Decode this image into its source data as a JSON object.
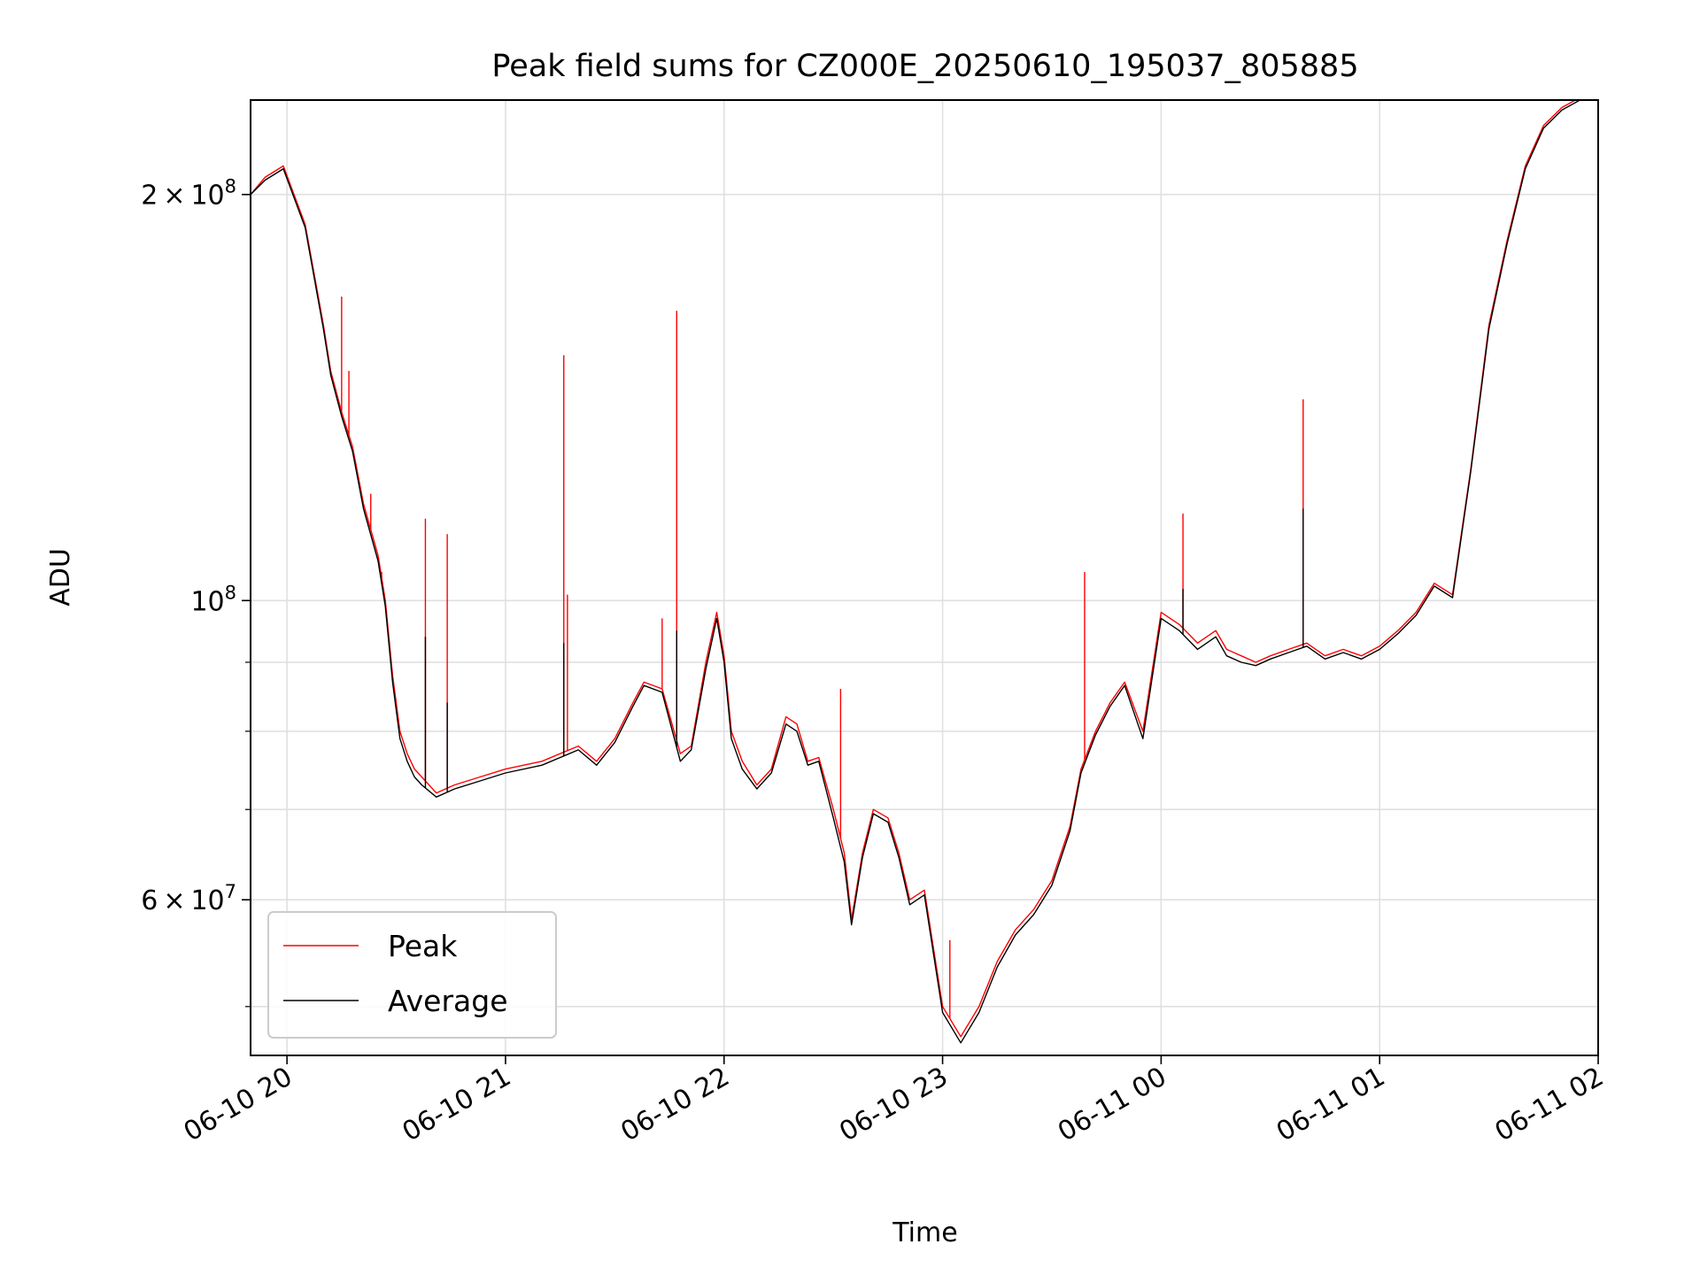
{
  "chart_data": {
    "type": "line",
    "title": "Peak field sums for CZ000E_20250610_195037_805885",
    "xlabel": "Time",
    "ylabel": "ADU",
    "yscale": "log",
    "grid": true,
    "legend_position": "lower-left",
    "x_tick_labels": [
      "06-10 20",
      "06-10 21",
      "06-10 22",
      "06-10 23",
      "06-11 00",
      "06-11 01",
      "06-11 02"
    ],
    "x_tick_times": [
      "2025-06-10 20:00",
      "2025-06-10 21:00",
      "2025-06-10 22:00",
      "2025-06-10 23:00",
      "2025-06-11 00:00",
      "2025-06-11 01:00",
      "2025-06-11 02:00"
    ],
    "xlim": [
      "2025-06-10 19:50",
      "2025-06-11 02:00"
    ],
    "ylim": [
      46000000,
      235000000
    ],
    "y_major_ticks": [
      {
        "value": 60000000,
        "mantissa": "6",
        "exponent": "7"
      },
      {
        "value": 100000000,
        "mantissa": "",
        "exponent": "8"
      },
      {
        "value": 200000000,
        "mantissa": "2",
        "exponent": "8"
      }
    ],
    "y_minor_ticks": [
      50000000,
      70000000,
      80000000,
      90000000
    ],
    "x": [
      "2025-06-10 19:50",
      "2025-06-10 19:54",
      "2025-06-10 19:59",
      "2025-06-10 20:05",
      "2025-06-10 20:10",
      "2025-06-10 20:12",
      "2025-06-10 20:15",
      "2025-06-10 20:18",
      "2025-06-10 20:21",
      "2025-06-10 20:25",
      "2025-06-10 20:27",
      "2025-06-10 20:29",
      "2025-06-10 20:31",
      "2025-06-10 20:33",
      "2025-06-10 20:35",
      "2025-06-10 20:37",
      "2025-06-10 20:41",
      "2025-06-10 20:46",
      "2025-06-10 20:53",
      "2025-06-10 21:00",
      "2025-06-10 21:10",
      "2025-06-10 21:20",
      "2025-06-10 21:25",
      "2025-06-10 21:30",
      "2025-06-10 21:35",
      "2025-06-10 21:38",
      "2025-06-10 21:43",
      "2025-06-10 21:48",
      "2025-06-10 21:51",
      "2025-06-10 21:55",
      "2025-06-10 21:58",
      "2025-06-10 22:00",
      "2025-06-10 22:02",
      "2025-06-10 22:05",
      "2025-06-10 22:09",
      "2025-06-10 22:13",
      "2025-06-10 22:17",
      "2025-06-10 22:20",
      "2025-06-10 22:23",
      "2025-06-10 22:26",
      "2025-06-10 22:30",
      "2025-06-10 22:33",
      "2025-06-10 22:35",
      "2025-06-10 22:38",
      "2025-06-10 22:41",
      "2025-06-10 22:45",
      "2025-06-10 22:48",
      "2025-06-10 22:51",
      "2025-06-10 22:55",
      "2025-06-10 23:00",
      "2025-06-10 23:05",
      "2025-06-10 23:10",
      "2025-06-10 23:15",
      "2025-06-10 23:20",
      "2025-06-10 23:25",
      "2025-06-10 23:30",
      "2025-06-10 23:35",
      "2025-06-10 23:38",
      "2025-06-10 23:42",
      "2025-06-10 23:46",
      "2025-06-10 23:50",
      "2025-06-10 23:55",
      "2025-06-11 00:00",
      "2025-06-11 00:05",
      "2025-06-11 00:10",
      "2025-06-11 00:15",
      "2025-06-11 00:18",
      "2025-06-11 00:22",
      "2025-06-11 00:26",
      "2025-06-11 00:30",
      "2025-06-11 00:35",
      "2025-06-11 00:40",
      "2025-06-11 00:45",
      "2025-06-11 00:50",
      "2025-06-11 00:55",
      "2025-06-11 01:00",
      "2025-06-11 01:05",
      "2025-06-11 01:10",
      "2025-06-11 01:15",
      "2025-06-11 01:20",
      "2025-06-11 01:25",
      "2025-06-11 01:30",
      "2025-06-11 01:35",
      "2025-06-11 01:40",
      "2025-06-11 01:45",
      "2025-06-11 01:50",
      "2025-06-11 01:55",
      "2025-06-11 02:00"
    ],
    "series": [
      {
        "name": "Peak",
        "color": "#ff0000",
        "values": [
          200000000,
          206000000,
          210000000,
          190000000,
          160000000,
          148000000,
          138000000,
          130000000,
          118000000,
          108000000,
          100000000,
          88000000,
          80000000,
          77000000,
          75000000,
          74000000,
          72000000,
          73000000,
          74000000,
          75000000,
          76000000,
          78000000,
          76000000,
          79000000,
          84000000,
          87000000,
          86000000,
          77000000,
          78000000,
          90000000,
          98000000,
          91000000,
          80000000,
          76000000,
          73000000,
          75000000,
          82000000,
          81000000,
          76000000,
          76500000,
          70000000,
          65000000,
          58000000,
          65000000,
          70000000,
          69000000,
          65000000,
          60000000,
          61000000,
          50000000,
          47500000,
          50000000,
          54000000,
          57000000,
          59000000,
          62000000,
          68000000,
          75000000,
          80000000,
          84000000,
          87000000,
          80000000,
          98000000,
          96000000,
          93000000,
          95000000,
          92000000,
          91000000,
          90000000,
          91000000,
          92000000,
          93000000,
          91000000,
          92000000,
          91000000,
          92500000,
          95000000,
          98000000,
          103000000,
          101000000,
          125000000,
          160000000,
          185000000,
          210000000,
          225000000,
          232000000,
          236000000,
          238000000
        ]
      },
      {
        "name": "Average",
        "color": "#000000",
        "values": [
          200000000,
          205000000,
          209000000,
          189000000,
          159000000,
          147000000,
          137000000,
          129000000,
          117000000,
          107000000,
          99000000,
          87000000,
          79000000,
          76000000,
          74000000,
          73000000,
          71500000,
          72500000,
          73500000,
          74500000,
          75500000,
          77500000,
          75500000,
          78500000,
          83500000,
          86500000,
          85500000,
          76000000,
          77500000,
          89000000,
          97000000,
          90000000,
          79000000,
          75000000,
          72500000,
          74500000,
          81000000,
          80000000,
          75500000,
          76000000,
          69000000,
          64000000,
          57500000,
          64500000,
          69500000,
          68500000,
          64500000,
          59500000,
          60500000,
          49500000,
          47000000,
          49500000,
          53500000,
          56500000,
          58500000,
          61500000,
          67500000,
          74500000,
          79500000,
          83500000,
          86500000,
          79000000,
          97000000,
          95000000,
          92000000,
          94000000,
          91000000,
          90000000,
          89500000,
          90500000,
          91500000,
          92500000,
          90500000,
          91500000,
          90500000,
          92000000,
          94500000,
          97500000,
          102500000,
          100500000,
          124500000,
          159000000,
          184000000,
          209000000,
          224000000,
          231000000,
          235000000,
          237000000
        ]
      }
    ],
    "spikes": [
      {
        "series": "Peak",
        "x": "2025-06-10 20:15",
        "value": 168000000
      },
      {
        "series": "Peak",
        "x": "2025-06-10 20:17",
        "value": 148000000
      },
      {
        "series": "Peak",
        "x": "2025-06-10 20:23",
        "value": 120000000
      },
      {
        "series": "Peak",
        "x": "2025-06-10 20:26",
        "value": 105000000
      },
      {
        "series": "Peak",
        "x": "2025-06-10 20:38",
        "value": 115000000
      },
      {
        "series": "Peak",
        "x": "2025-06-10 20:44",
        "value": 112000000
      },
      {
        "series": "Peak",
        "x": "2025-06-10 21:16",
        "value": 152000000
      },
      {
        "series": "Peak",
        "x": "2025-06-10 21:17",
        "value": 101000000
      },
      {
        "series": "Peak",
        "x": "2025-06-10 21:43",
        "value": 97000000
      },
      {
        "series": "Peak",
        "x": "2025-06-10 21:47",
        "value": 164000000
      },
      {
        "series": "Peak",
        "x": "2025-06-10 22:32",
        "value": 86000000
      },
      {
        "series": "Peak",
        "x": "2025-06-10 23:02",
        "value": 56000000
      },
      {
        "series": "Peak",
        "x": "2025-06-10 23:39",
        "value": 105000000
      },
      {
        "series": "Peak",
        "x": "2025-06-11 00:06",
        "value": 116000000
      },
      {
        "series": "Peak",
        "x": "2025-06-11 00:39",
        "value": 141000000
      },
      {
        "series": "Average",
        "x": "2025-06-10 20:38",
        "value": 94000000
      },
      {
        "series": "Average",
        "x": "2025-06-10 20:44",
        "value": 84000000
      },
      {
        "series": "Average",
        "x": "2025-06-10 21:16",
        "value": 93000000
      },
      {
        "series": "Average",
        "x": "2025-06-10 21:47",
        "value": 95000000
      },
      {
        "series": "Average",
        "x": "2025-06-11 00:06",
        "value": 102000000
      },
      {
        "series": "Average",
        "x": "2025-06-11 00:39",
        "value": 117000000
      }
    ]
  }
}
